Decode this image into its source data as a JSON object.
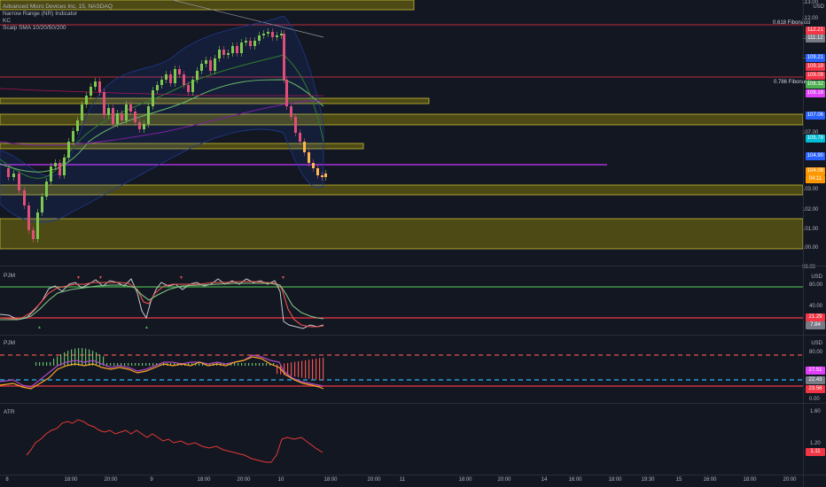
{
  "main_pane": {
    "legend": [
      "Advanced Micro Devices Inc, 15, NASDAQ",
      "Narrow Range (NR) Indicator",
      "KC",
      "Scalp SMA 10/20/50/200"
    ],
    "currency": "USD",
    "price_ticks": [
      "113.00",
      "112.00",
      "111.00",
      "110.00",
      "109.00",
      "108.00",
      "107.00",
      "106.00",
      "105.00",
      "104.00",
      "103.00",
      "102.00",
      "101.00",
      "100.00",
      "99.00"
    ],
    "tags": [
      {
        "text": "112.21",
        "color": "#f23645"
      },
      {
        "text": "111.12",
        "color": "#787b86"
      },
      {
        "text": "109.21",
        "color": "#2962ff"
      },
      {
        "text": "109.19",
        "color": "#f23645"
      },
      {
        "text": "109.09",
        "color": "#f23645"
      },
      {
        "text": "108.32",
        "color": "#4caf50"
      },
      {
        "text": "108.18",
        "color": "#e040fb"
      },
      {
        "text": "107.06",
        "color": "#2962ff"
      },
      {
        "text": "105.78",
        "color": "#00bcd4"
      },
      {
        "text": "104.90",
        "color": "#2962ff"
      },
      {
        "text": "104.08",
        "color": "#ff9800"
      },
      {
        "text": "04:11",
        "color": "#ff9800"
      }
    ],
    "fib_labels": [
      "0.618 Fibonacci",
      "0.786 Fibonacci"
    ]
  },
  "pane2": {
    "label": "PJM",
    "currency": "USD",
    "ticks": [
      "80.00",
      "40.00"
    ],
    "tags": [
      {
        "text": "21.29",
        "color": "#f23645"
      },
      {
        "text": "7.84",
        "color": "#787b86"
      }
    ]
  },
  "pane3": {
    "label": "PJM",
    "currency": "USD",
    "ticks": [
      "80.00",
      "0.00"
    ],
    "tags": [
      {
        "text": "27.51",
        "color": "#e040fb"
      },
      {
        "text": "22.43",
        "color": "#787b86"
      },
      {
        "text": "23.56",
        "color": "#f23645"
      }
    ]
  },
  "pane4": {
    "label": "ATR",
    "ticks": [
      "1.60",
      "1.20"
    ],
    "tags": [
      {
        "text": "1.11",
        "color": "#f23645"
      }
    ]
  },
  "time_axis": [
    "8",
    "18:00",
    "20:00",
    "9",
    "18:00",
    "20:00",
    "10",
    "18:00",
    "20:00",
    "11",
    "18:00",
    "20:00",
    "14",
    "16:00",
    "18:00",
    "19:30",
    "15",
    "16:00",
    "18:00",
    "20:00"
  ],
  "colors": {
    "background": "#131722",
    "up_candle": "#7ec850",
    "down_candle": "#e04f78",
    "zone_fill": "#5c5a1e",
    "zone_border": "#d4c738",
    "magenta": "#cc33ff",
    "red_line": "#f23645"
  }
}
